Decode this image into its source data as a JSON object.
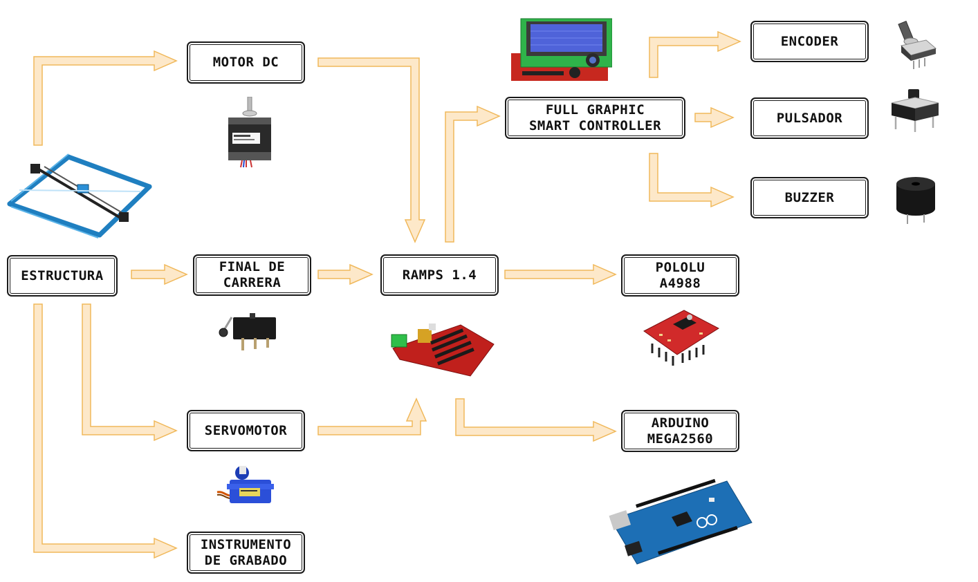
{
  "nodes": {
    "estructura": "ESTRUCTURA",
    "motor_dc": "MOTOR DC",
    "final_carrera": "FINAL DE\nCARRERA",
    "servomotor": "SERVOMOTOR",
    "instrumento": "INSTRUMENTO\nDE GRABADO",
    "ramps": "RAMPS 1.4",
    "full_graphic": "FULL GRAPHIC\nSMART CONTROLLER",
    "encoder": "ENCODER",
    "pulsador": "PULSADOR",
    "buzzer": "BUZZER",
    "pololu": "POLOLU\nA4988",
    "arduino": "ARDUINO\nMEGA2560"
  },
  "colors": {
    "arrow_fill": "#fde8c9",
    "arrow_stroke": "#f0b85a",
    "box_border": "#1a1a1a"
  },
  "icons": {
    "estructura": "cnc-frame-icon",
    "motor_dc": "stepper-motor-icon",
    "final_carrera": "limit-switch-icon",
    "servomotor": "servo-icon",
    "ramps": "ramps-board-icon",
    "full_graphic": "lcd-controller-icon",
    "encoder": "rotary-encoder-icon",
    "pulsador": "push-button-icon",
    "buzzer": "buzzer-icon",
    "pololu": "stepper-driver-icon",
    "arduino": "arduino-board-icon"
  }
}
